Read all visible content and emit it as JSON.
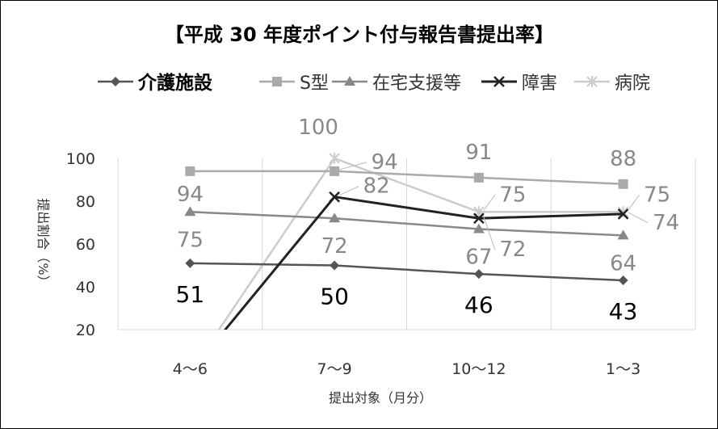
{
  "chart_data": {
    "type": "line",
    "title": "【平成 30 年度ポイント付与報告書提出率】",
    "xlabel": "提出対象（月分）",
    "ylabel": "提出割合（%）",
    "categories": [
      "4～6",
      "7～9",
      "10～12",
      "1～3"
    ],
    "ylim": [
      20,
      100
    ],
    "yticks": [
      20,
      40,
      60,
      80,
      100
    ],
    "grid": "vertical",
    "legend": "top",
    "series": [
      {
        "name": "介護施設",
        "values": [
          51,
          50,
          46,
          43
        ],
        "color": "#555555",
        "marker": "diamond",
        "labels": [
          "51",
          "50",
          "46",
          "43"
        ]
      },
      {
        "name": "S型",
        "values": [
          94,
          94,
          91,
          88
        ],
        "color": "#aaaaaa",
        "marker": "square",
        "labels": [
          "94",
          "94",
          "91",
          "88"
        ]
      },
      {
        "name": "在宅支援等",
        "values": [
          75,
          72,
          67,
          64
        ],
        "color": "#888888",
        "marker": "triangle",
        "labels": [
          "75",
          "72",
          "67",
          "64"
        ]
      },
      {
        "name": "障害",
        "values": [
          0,
          82,
          72,
          74
        ],
        "color": "#222222",
        "marker": "x",
        "labels": [
          "",
          "82",
          "72",
          "74"
        ]
      },
      {
        "name": "病院",
        "values": [
          0,
          100,
          75,
          75
        ],
        "color": "#cccccc",
        "marker": "star",
        "labels": [
          "",
          "100",
          "75",
          "75"
        ]
      }
    ]
  }
}
